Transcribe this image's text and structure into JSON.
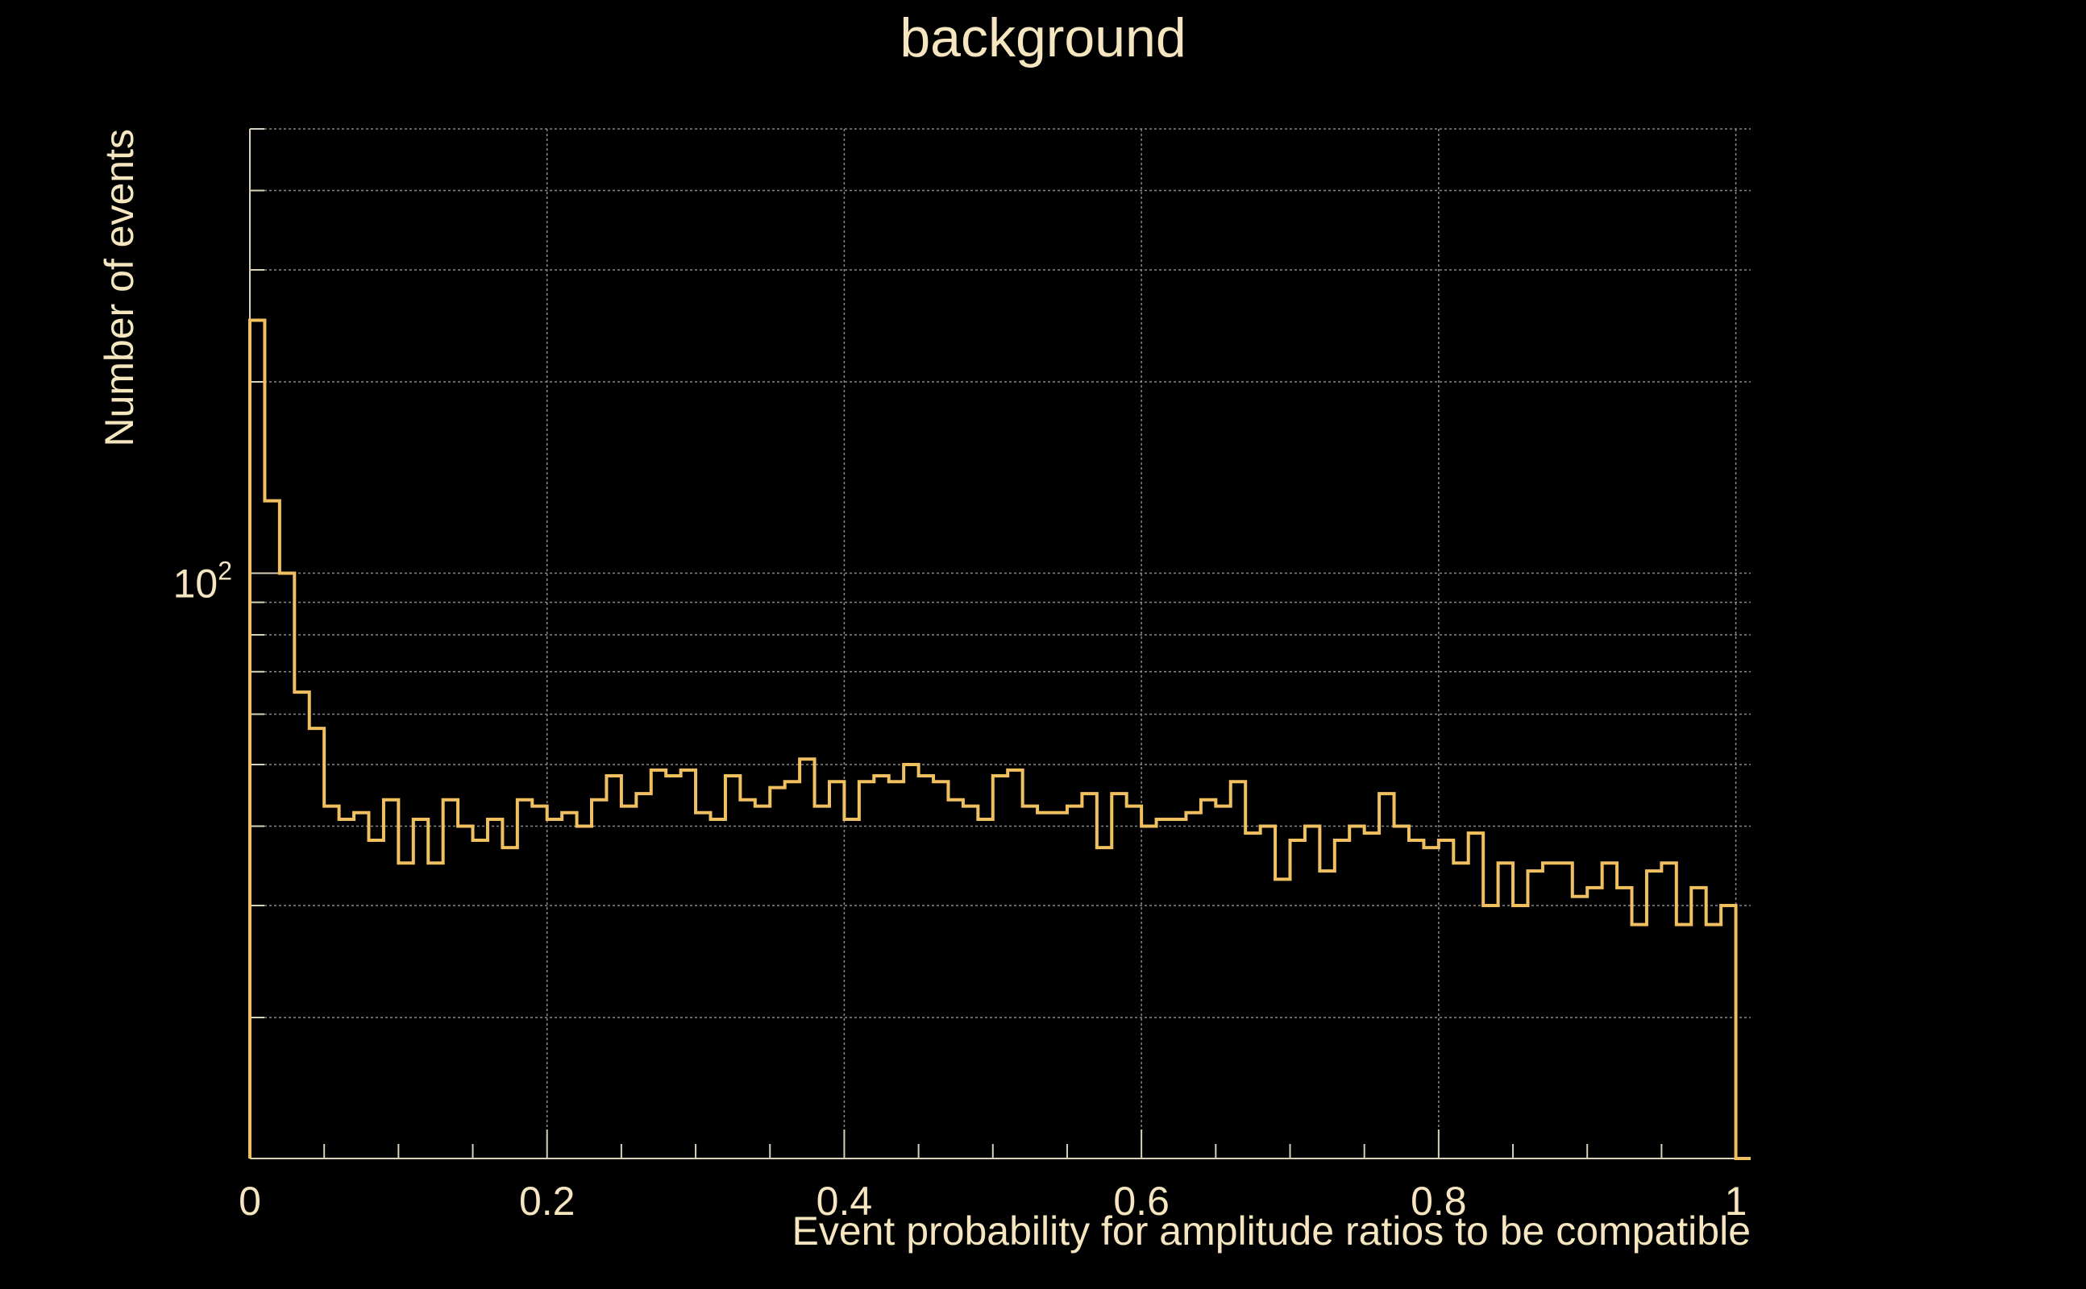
{
  "chart_data": {
    "type": "histogram",
    "title": "background",
    "xlabel": "Event probability for amplitude ratios to be compatible",
    "ylabel": "Number of events",
    "xlim": [
      0,
      1.01
    ],
    "ylim": [
      12,
      500
    ],
    "yscale": "log",
    "grid": true,
    "xticks": [
      0,
      0.2,
      0.4,
      0.6,
      0.8,
      1
    ],
    "xtick_labels": [
      "0",
      "0.2",
      "0.4",
      "0.6",
      "0.8",
      "1"
    ],
    "ytick_label": {
      "base": "10",
      "exp": "2"
    },
    "bin_width": 0.01,
    "bin_edges_start": 0,
    "series": [
      {
        "values": [
          250,
          130,
          100,
          65,
          57,
          43,
          41,
          42,
          38,
          44,
          35,
          41,
          35,
          44,
          40,
          38,
          41,
          37,
          44,
          43,
          41,
          42,
          40,
          44,
          48,
          43,
          45,
          49,
          48,
          49,
          42,
          41,
          48,
          44,
          43,
          46,
          47,
          51,
          43,
          47,
          41,
          47,
          48,
          47,
          50,
          48,
          47,
          44,
          43,
          41,
          48,
          49,
          43,
          42,
          42,
          43,
          45,
          37,
          45,
          43,
          40,
          41,
          41,
          42,
          44,
          43,
          47,
          39,
          40,
          33,
          38,
          40,
          34,
          38,
          40,
          39,
          45,
          40,
          38,
          37,
          38,
          35,
          39,
          30,
          35,
          30,
          34,
          35,
          35,
          31,
          32,
          35,
          32,
          28,
          34,
          35,
          28,
          32,
          28,
          30,
          12
        ]
      }
    ],
    "colors": {
      "background": "#000000",
      "line": "#f0c060",
      "text": "#f5e6c0",
      "grid": "#888888",
      "axis": "#d8d0b8"
    }
  }
}
